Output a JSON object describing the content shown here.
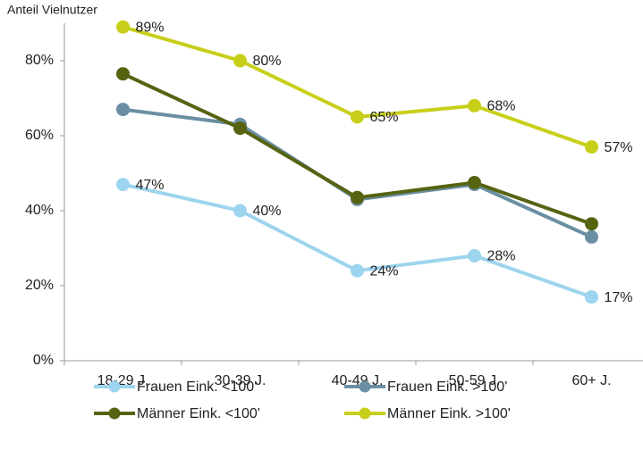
{
  "chart_data": {
    "type": "line",
    "y_label": "Anteil Vielnutzer",
    "categories": [
      "18-29 J.",
      "30-39 J.",
      "40-49 J.",
      "50-59 J.",
      "60+ J."
    ],
    "series": [
      {
        "name": "Frauen Eink. <100'",
        "color": "#9dd4ee",
        "values": [
          47,
          40,
          24,
          28,
          17
        ],
        "value_labels": [
          "47%",
          "40%",
          "24%",
          "28%",
          "17%"
        ]
      },
      {
        "name": "Frauen Eink. >100'",
        "color": "#6a8fa3",
        "values": [
          67,
          63,
          43,
          47,
          33
        ]
      },
      {
        "name": "Männer Eink. <100'",
        "color": "#566311",
        "values": [
          76.5,
          62,
          43.5,
          47.5,
          36.5
        ]
      },
      {
        "name": "Männer Eink. >100'",
        "color": "#c8cf1a",
        "values": [
          89,
          80,
          65,
          68,
          57
        ],
        "value_labels": [
          "89%",
          "80%",
          "65%",
          "68%",
          "57%"
        ]
      }
    ],
    "ylim": [
      0,
      90
    ],
    "yticks": [
      {
        "value": 0,
        "label": "0%"
      },
      {
        "value": 20,
        "label": "20%"
      },
      {
        "value": 40,
        "label": "40%"
      },
      {
        "value": 60,
        "label": "60%"
      },
      {
        "value": 80,
        "label": "80%"
      }
    ],
    "grid": false
  }
}
